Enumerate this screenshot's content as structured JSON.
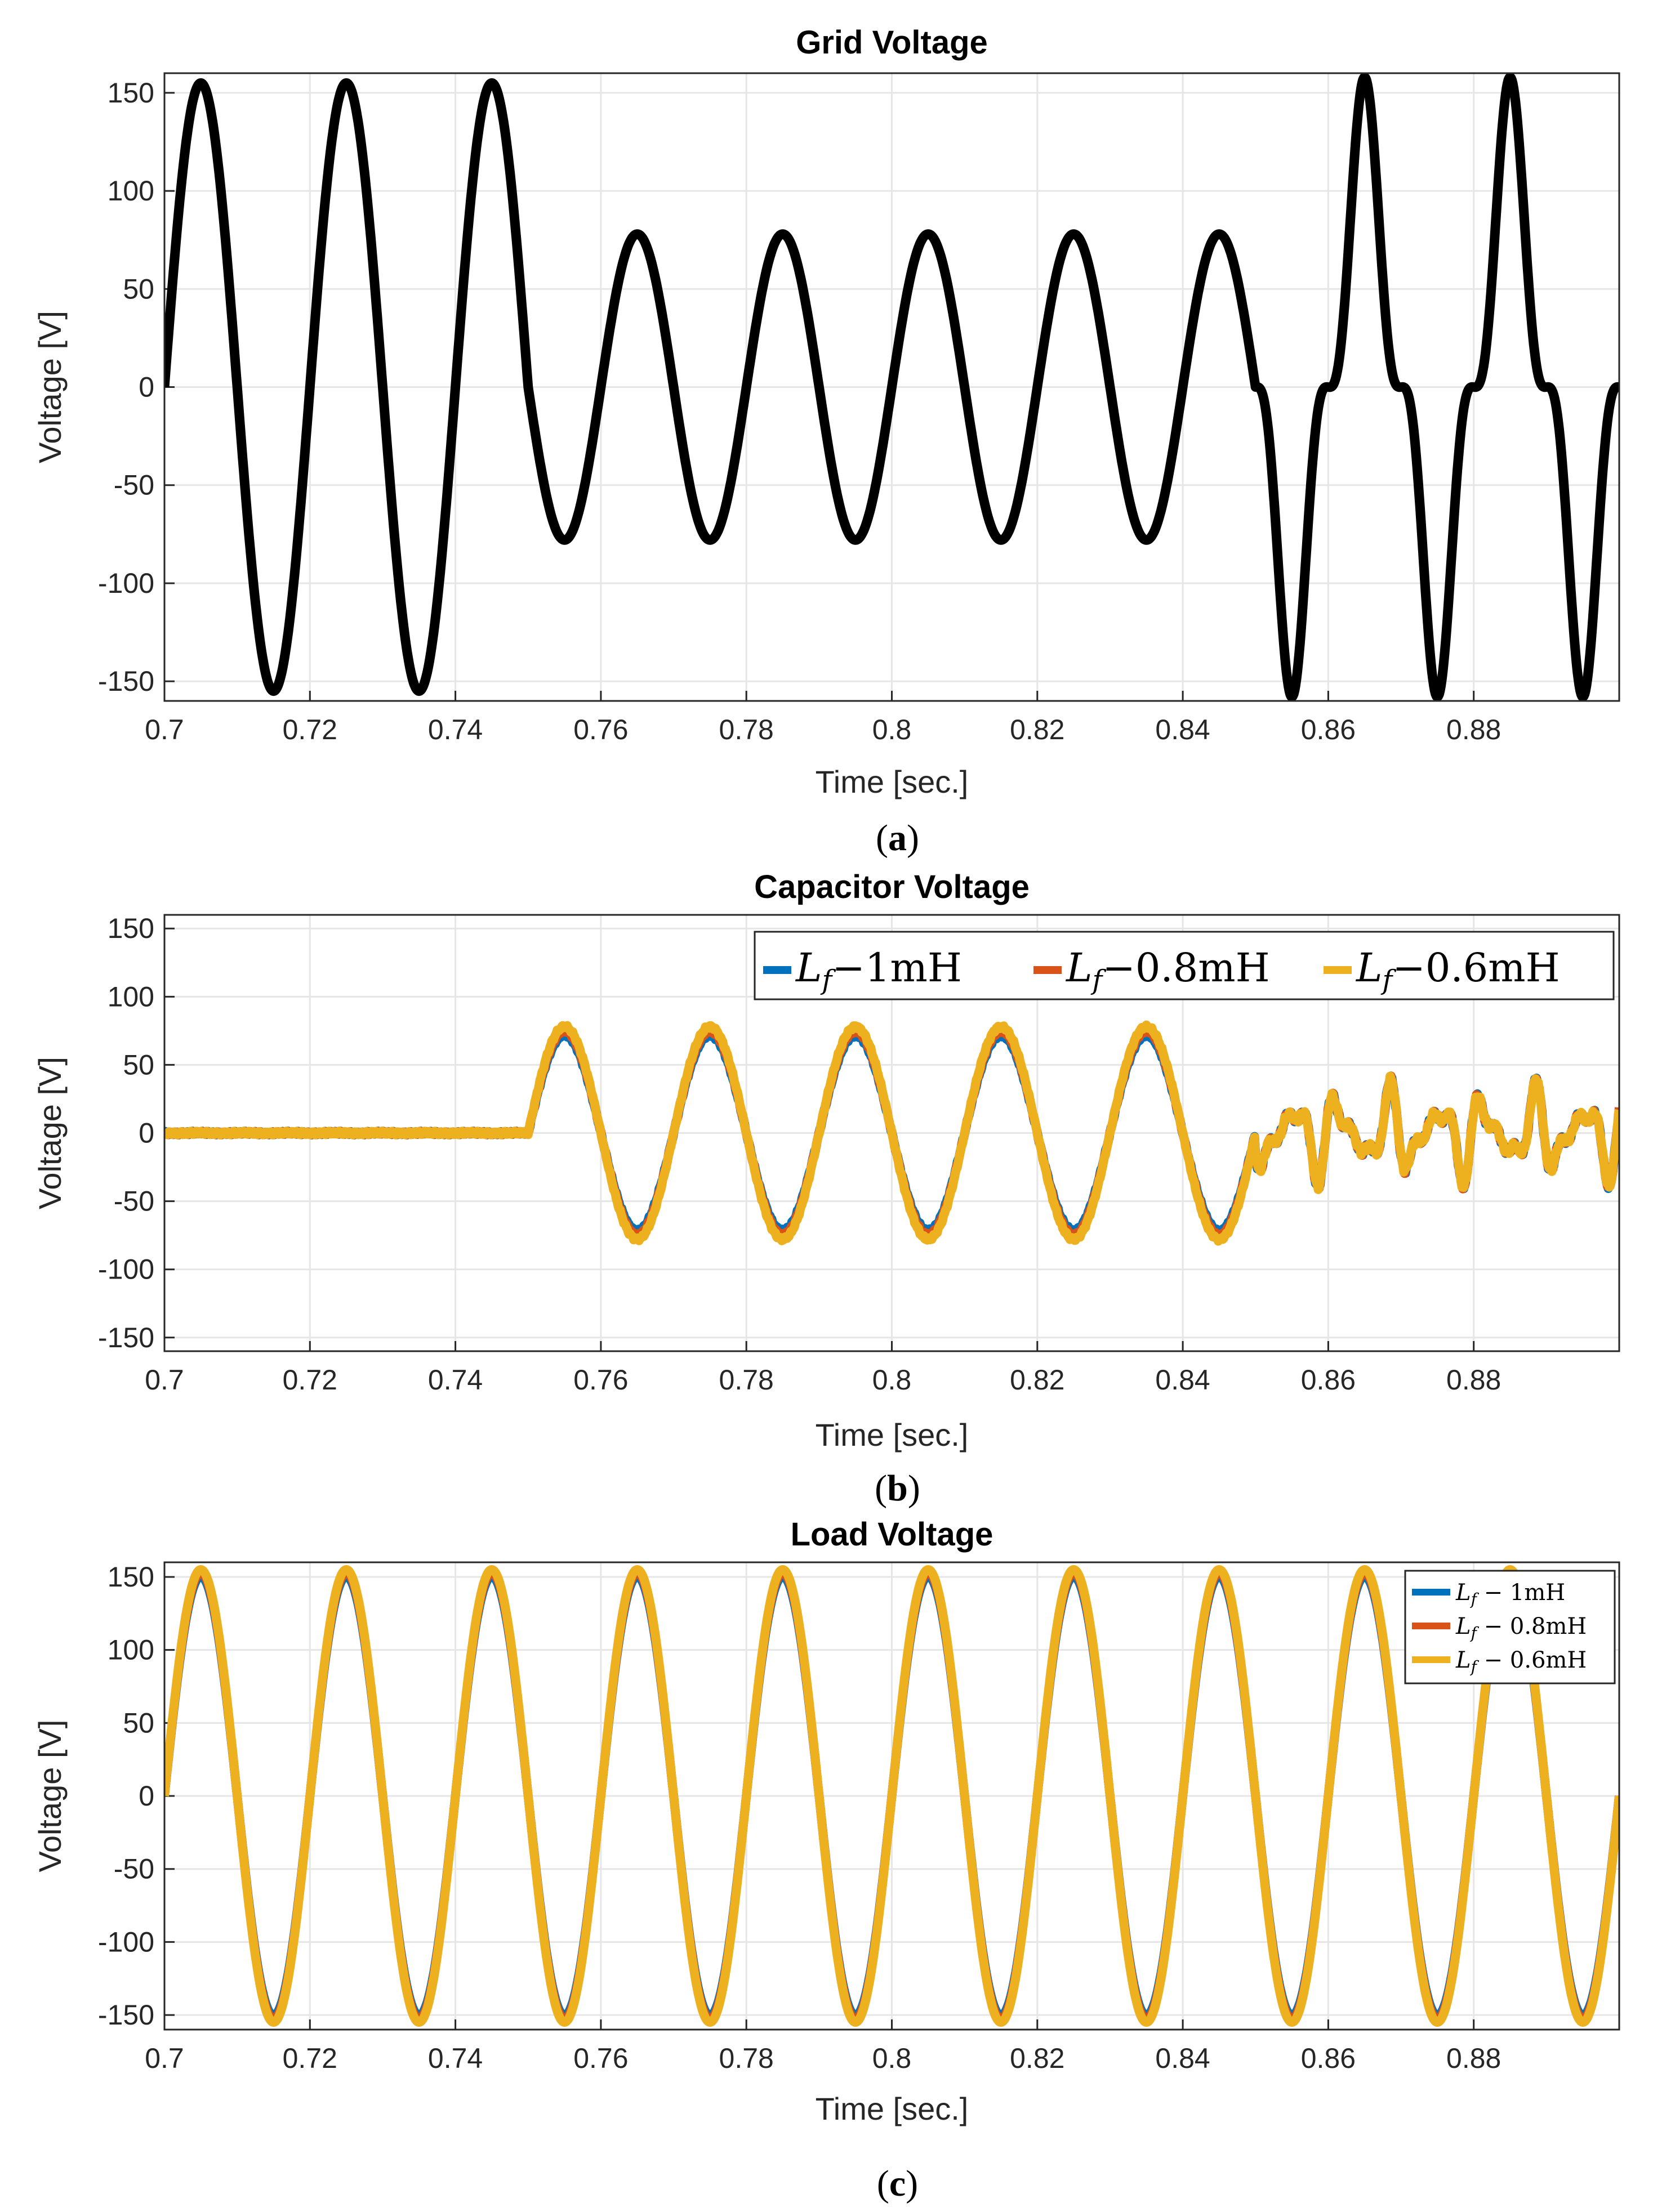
{
  "chart_data": [
    {
      "type": "line",
      "title": "Grid Voltage",
      "xlabel": "Time [sec.]",
      "ylabel": "Voltage [V]",
      "xlim": [
        0.7,
        0.9
      ],
      "ylim": [
        -160,
        160
      ],
      "xticks": [
        "0.7",
        "0.72",
        "0.74",
        "0.76",
        "0.78",
        "0.8",
        "0.82",
        "0.84",
        "0.86",
        "0.88"
      ],
      "yticks": [
        "150",
        "100",
        "50",
        "0",
        "-50",
        "-100",
        "-150"
      ],
      "grid": true,
      "caption": "(a)",
      "series": [
        {
          "name": "Grid voltage",
          "color": "#000000",
          "description": "50 Hz sine: 155 V peak for 0.70-0.75 s, 78 V peak (sag) for 0.75-0.85 s, distorted 118 V fundamental + 3rd harmonic (peak ~148 V) for 0.85-0.90 s"
        }
      ]
    },
    {
      "type": "line",
      "title": "Capacitor Voltage",
      "xlabel": "Time [sec.]",
      "ylabel": "Voltage [V]",
      "xlim": [
        0.7,
        0.9
      ],
      "ylim": [
        -160,
        160
      ],
      "xticks": [
        "0.7",
        "0.72",
        "0.74",
        "0.76",
        "0.78",
        "0.8",
        "0.82",
        "0.84",
        "0.86",
        "0.88"
      ],
      "yticks": [
        "150",
        "100",
        "50",
        "0",
        "-50",
        "-100",
        "-150"
      ],
      "grid": true,
      "caption": "(b)",
      "legend_position": "top-right",
      "series": [
        {
          "name": "L_f − 1mH",
          "color": "#0072BD"
        },
        {
          "name": "L_f − 0.8mH",
          "color": "#D95319"
        },
        {
          "name": "L_f − 0.6mH",
          "color": "#EDB120"
        }
      ]
    },
    {
      "type": "line",
      "title": "Load Voltage",
      "xlabel": "Time [sec.]",
      "ylabel": "Voltage [V]",
      "xlim": [
        0.7,
        0.9
      ],
      "ylim": [
        -160,
        160
      ],
      "xticks": [
        "0.7",
        "0.72",
        "0.74",
        "0.76",
        "0.78",
        "0.8",
        "0.82",
        "0.84",
        "0.86",
        "0.88"
      ],
      "yticks": [
        "150",
        "100",
        "50",
        "0",
        "-50",
        "-100",
        "-150"
      ],
      "grid": true,
      "caption": "(c)",
      "legend_position": "top-right",
      "series": [
        {
          "name": "L_f − 1mH",
          "color": "#0072BD"
        },
        {
          "name": "L_f − 0.8mH",
          "color": "#D95319"
        },
        {
          "name": "L_f − 0.6mH",
          "color": "#EDB120"
        }
      ]
    }
  ],
  "legend_math": {
    "main": "L",
    "sub": "f",
    "entries_big": [
      "−1mH",
      "−0.8mH",
      "−0.6mH"
    ],
    "entries_small": [
      "− 1mH",
      "− 0.8mH",
      "− 0.6mH"
    ]
  },
  "signal_params": {
    "frequency_hz": 50,
    "nominal_peak": 155,
    "sag_peak": 78,
    "sag_start": 0.75,
    "distortion_start": 0.85,
    "distorted_fundamental": 118,
    "distorted_third": -40,
    "capacitor_tail_peak": 35
  }
}
